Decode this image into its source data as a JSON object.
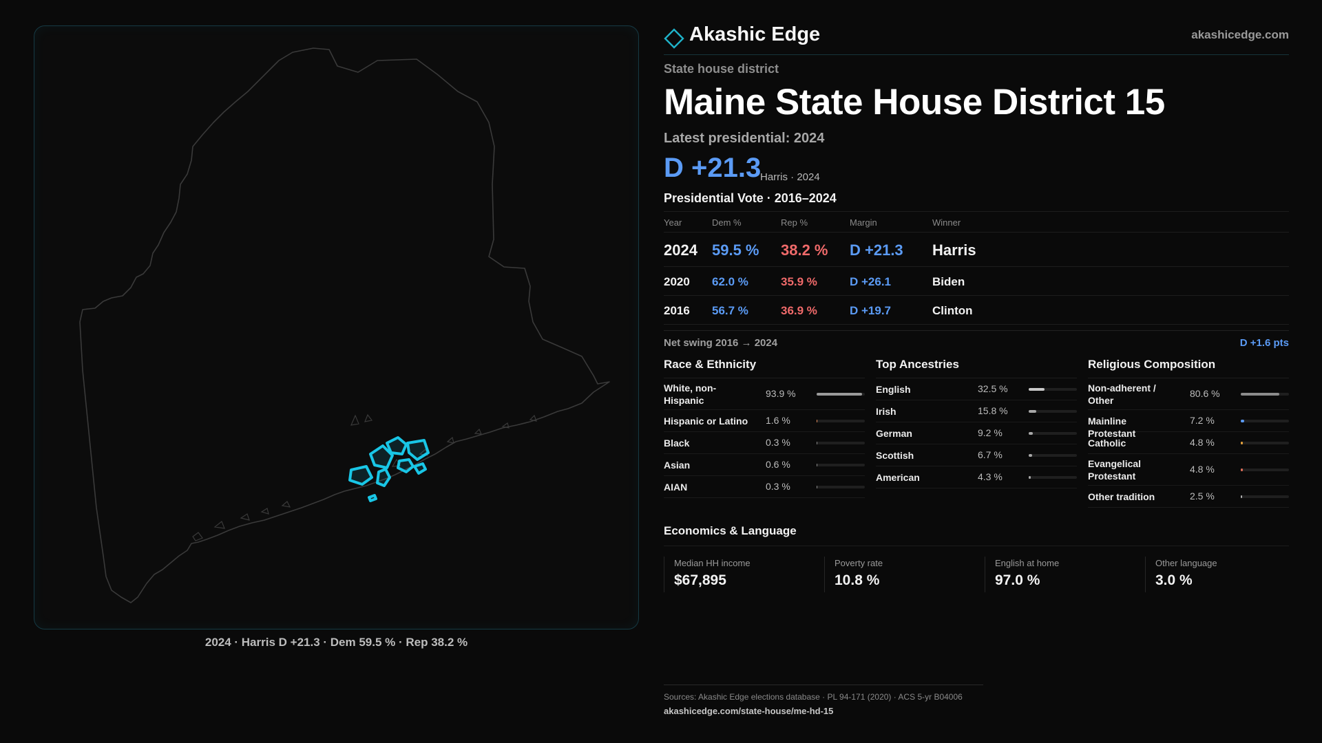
{
  "map": {
    "caption": "2024 · Harris D +21.3 · Dem 59.5 % · Rep 38.2 %",
    "outline_color": "#3a3a3a",
    "district_color": "#19c6e6"
  },
  "header": {
    "brand": "Akashic Edge",
    "site": "akashicedge.com",
    "accent": "#1fb3c9"
  },
  "district": {
    "kind": "State house district",
    "title": "Maine State House District 15",
    "latest_label": "Latest presidential: 2024",
    "margin": "D +21.3",
    "margin_sub": "Harris · 2024"
  },
  "presidential": {
    "heading": "Presidential Vote · 2016–2024",
    "columns": [
      "Year",
      "Dem %",
      "Rep %",
      "Margin",
      "Winner"
    ],
    "rows": [
      {
        "year": "2024",
        "dem": "59.5 %",
        "rep": "38.2 %",
        "margin": "D +21.3",
        "winner": "Harris"
      },
      {
        "year": "2020",
        "dem": "62.0 %",
        "rep": "35.9 %",
        "margin": "D +26.1",
        "winner": "Biden"
      },
      {
        "year": "2016",
        "dem": "56.7 %",
        "rep": "36.9 %",
        "margin": "D +19.7",
        "winner": "Clinton"
      }
    ],
    "swing_label": "Net swing 2016 → 2024",
    "swing_value": "D +1.6 pts",
    "dem_color": "#5b9bf5",
    "rep_color": "#f06a6a"
  },
  "race": {
    "title": "Race & Ethnicity",
    "rows": [
      {
        "label": "White, non-Hispanic",
        "value": "93.9 %",
        "pct": 93.9,
        "color": "#9a9a9a"
      },
      {
        "label": "Hispanic or Latino",
        "value": "1.6 %",
        "pct": 1.6,
        "color": "#e08a5a"
      },
      {
        "label": "Black",
        "value": "0.3 %",
        "pct": 0.3,
        "color": "#8a8a8a"
      },
      {
        "label": "Asian",
        "value": "0.6 %",
        "pct": 0.6,
        "color": "#8a8a8a"
      },
      {
        "label": "AIAN",
        "value": "0.3 %",
        "pct": 0.3,
        "color": "#8a8a8a"
      }
    ]
  },
  "ancestry": {
    "title": "Top Ancestries",
    "rows": [
      {
        "label": "English",
        "value": "32.5 %",
        "pct": 32.5,
        "color": "#c8c8c8"
      },
      {
        "label": "Irish",
        "value": "15.8 %",
        "pct": 15.8,
        "color": "#a8a8a8"
      },
      {
        "label": "German",
        "value": "9.2 %",
        "pct": 9.2,
        "color": "#a8a8a8"
      },
      {
        "label": "Scottish",
        "value": "6.7 %",
        "pct": 6.7,
        "color": "#a8a8a8"
      },
      {
        "label": "American",
        "value": "4.3 %",
        "pct": 4.3,
        "color": "#a8a8a8"
      }
    ]
  },
  "religion": {
    "title": "Religious Composition",
    "rows": [
      {
        "label": "Non-adherent / Other",
        "value": "80.6 %",
        "pct": 80.6,
        "color": "#8c8c8c"
      },
      {
        "label": "Mainline Protestant",
        "value": "7.2 %",
        "pct": 7.2,
        "color": "#5b9bf5"
      },
      {
        "label": "Catholic",
        "value": "4.8 %",
        "pct": 4.8,
        "color": "#e6a23c"
      },
      {
        "label": "Evangelical Protestant",
        "value": "4.8 %",
        "pct": 4.8,
        "color": "#e0705a"
      },
      {
        "label": "Other tradition",
        "value": "2.5 %",
        "pct": 2.5,
        "color": "#b0b0b0"
      }
    ]
  },
  "economics": {
    "title": "Economics & Language",
    "items": [
      {
        "label": "Median HH income",
        "value": "$67,895"
      },
      {
        "label": "Poverty rate",
        "value": "10.8 %"
      },
      {
        "label": "English at home",
        "value": "97.0 %"
      },
      {
        "label": "Other language",
        "value": "3.0 %"
      }
    ]
  },
  "footer": {
    "sources": "Sources: Akashic Edge elections database · PL 94-171 (2020) · ACS 5-yr B04006",
    "url": "akashicedge.com/state-house/me-hd-15"
  }
}
